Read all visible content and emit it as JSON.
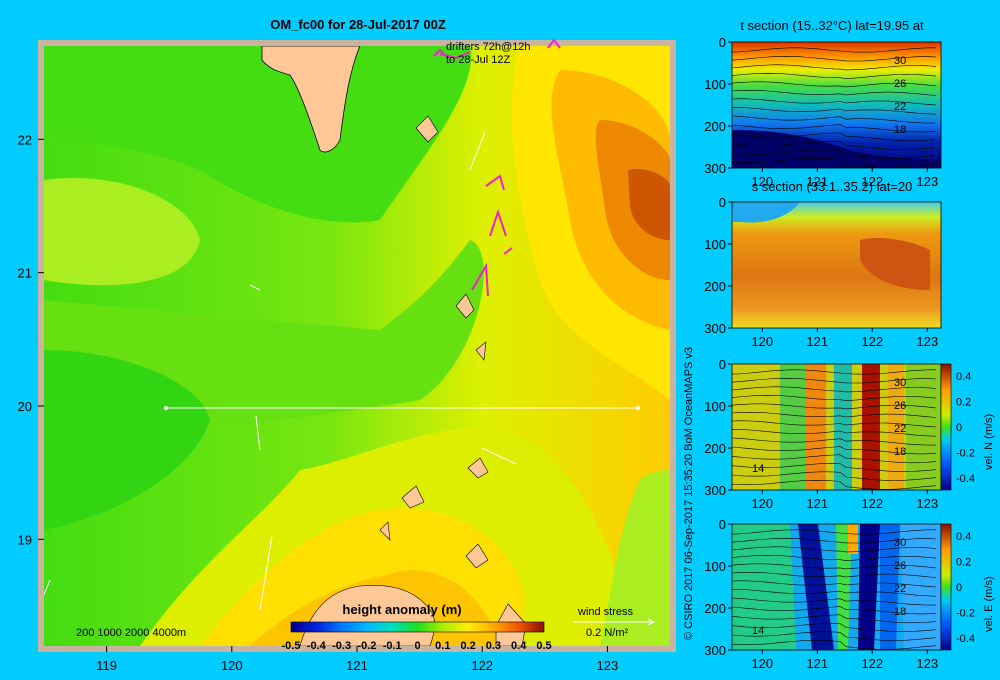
{
  "title": "OM_fc00 for 28-Jul-2017 00Z",
  "drifter_note": [
    "drifters 72h@12h",
    "to 28-Jul 12Z"
  ],
  "depth_legend": "200  1000  2000  4000m",
  "wind": {
    "label": "wind stress",
    "scale": "0.2 N/m²"
  },
  "credit": "© CSIRO 2017   06-Sep-2017 15:35:20 BoM OceanMAPS v3",
  "colors": {
    "background": "#00ccff",
    "land": "#ffc896",
    "frame": "#c8b4a0"
  },
  "chart_data": [
    {
      "type": "heatmap",
      "title": "OM_fc00 for 28-Jul-2017 00Z",
      "xlim": [
        118.5,
        123.5
      ],
      "ylim": [
        18.2,
        22.7
      ],
      "x_ticks": [
        119,
        120,
        121,
        122,
        123
      ],
      "y_ticks": [
        19,
        20,
        21,
        22
      ],
      "colorbar": {
        "label": "height anomaly (m)",
        "ticks": [
          "-0.5",
          "-0.4",
          "-0.3",
          "-0.2",
          "-0.1",
          "0",
          "0.1",
          "0.2",
          "0.3",
          "0.4",
          "0.5"
        ]
      },
      "section_line": {
        "lat": 20.0,
        "lon_range": [
          119.5,
          123.0
        ]
      }
    },
    {
      "type": "heatmap",
      "title": "t section (15..32°C) lat=19.95 at",
      "x_ticks": [
        120,
        121,
        122,
        123
      ],
      "y_ticks": [
        0,
        100,
        200,
        300
      ],
      "contour_labels": [
        "30",
        "26",
        "22",
        "18"
      ]
    },
    {
      "type": "heatmap",
      "title": "s section (33.1..35.2) lat=20",
      "x_ticks": [
        120,
        121,
        122,
        123
      ],
      "y_ticks": [
        0,
        100,
        200,
        300
      ]
    },
    {
      "type": "heatmap",
      "title": "",
      "x_ticks": [
        120,
        121,
        122,
        123
      ],
      "y_ticks": [
        0,
        100,
        200,
        300
      ],
      "contour_labels": [
        "30",
        "26",
        "22",
        "18",
        "14"
      ],
      "colorbar": {
        "label": "vel. N (m/s)",
        "ticks": [
          "0.4",
          "0.2",
          "0",
          "-0.2",
          "-0.4"
        ]
      }
    },
    {
      "type": "heatmap",
      "title": "",
      "x_ticks": [
        120,
        121,
        122,
        123
      ],
      "y_ticks": [
        0,
        100,
        200,
        300
      ],
      "contour_labels": [
        "30",
        "26",
        "22",
        "18",
        "14"
      ],
      "colorbar": {
        "label": "vel. E (m/s)",
        "ticks": [
          "0.4",
          "0.2",
          "0",
          "-0.2",
          "-0.4"
        ]
      }
    }
  ]
}
